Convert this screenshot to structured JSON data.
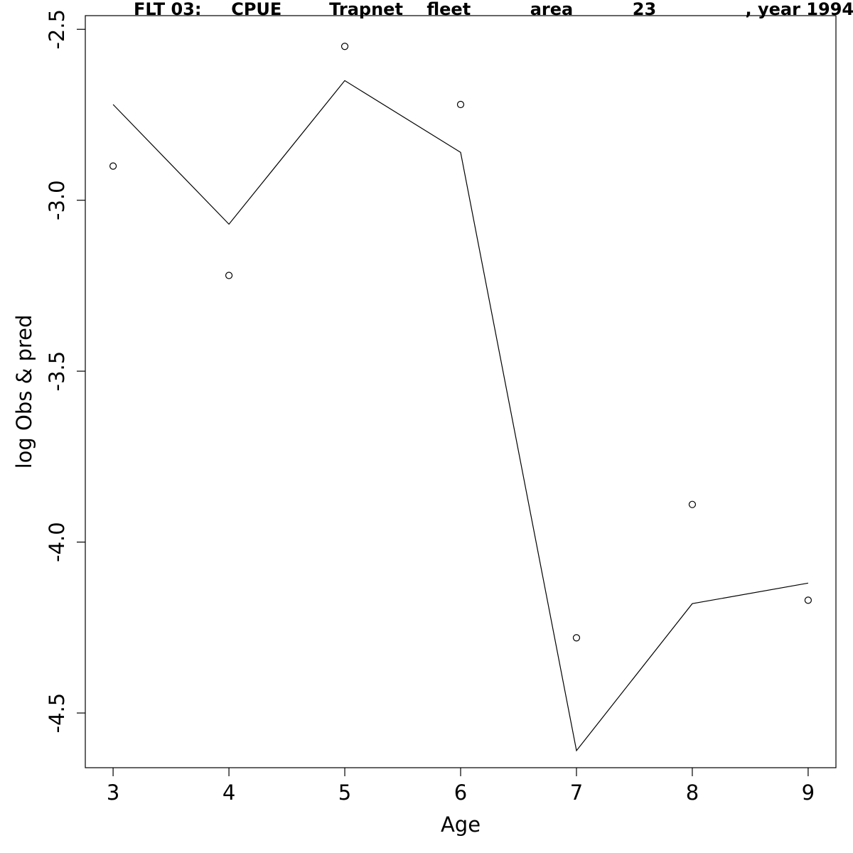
{
  "chart_data": {
    "type": "line",
    "title": "FLT 03:     CPUE        Trapnet    fleet          area          23               , year 1994",
    "xlabel": "Age",
    "ylabel": "log Obs & pred",
    "xlim": [
      2.76,
      9.24
    ],
    "ylim": [
      -4.66,
      -2.46
    ],
    "x_ticks": [
      3,
      4,
      5,
      6,
      7,
      8,
      9
    ],
    "y_ticks": [
      -2.5,
      -3.0,
      -3.5,
      -4.0,
      -4.5
    ],
    "y_tick_labels": [
      "-2.5",
      "-3.0",
      "-3.5",
      "-4.0",
      "-4.5"
    ],
    "grid": false,
    "series": [
      {
        "kind": "points",
        "x": [
          3,
          4,
          5,
          6,
          7,
          8,
          9
        ],
        "y": [
          -2.9,
          -3.22,
          -2.55,
          -2.72,
          -4.28,
          -3.89,
          -4.17
        ]
      },
      {
        "kind": "line",
        "x": [
          3,
          4,
          5,
          6,
          7,
          8,
          9
        ],
        "y": [
          -2.72,
          -3.07,
          -2.65,
          -2.86,
          -4.61,
          -4.18,
          -4.12
        ]
      }
    ]
  }
}
